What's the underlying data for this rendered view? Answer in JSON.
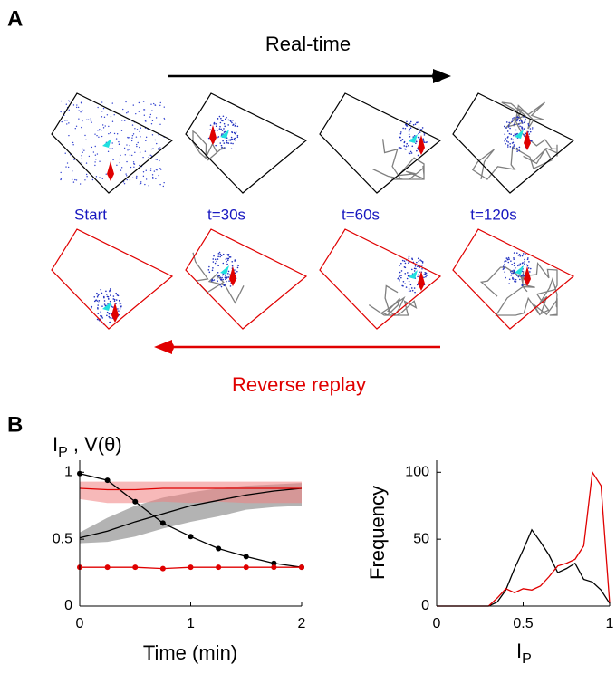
{
  "panel_a": {
    "label": "A",
    "top_arrow_label": "Real-time",
    "bottom_arrow_label": "Reverse replay",
    "snapshot_labels": [
      "Start",
      "t=30s",
      "t=60s",
      "t=120s"
    ]
  },
  "panel_b": {
    "label": "B"
  },
  "chart_data": [
    {
      "type": "line",
      "xlabel": "Time (min)",
      "ylabel": {
        "main": "I",
        "sub": "P",
        "rest": " , V(θ)"
      },
      "x": [
        0,
        0.25,
        0.5,
        0.75,
        1,
        1.25,
        1.5,
        1.75,
        2
      ],
      "xlim": [
        0,
        2
      ],
      "xticks": [
        0,
        1,
        2
      ],
      "ylim": [
        0,
        1.09
      ],
      "yticks": [
        0,
        0.5,
        1
      ],
      "bands": [
        {
          "color": "#808080",
          "alpha": 0.6,
          "lower": [
            0.47,
            0.48,
            0.52,
            0.58,
            0.63,
            0.67,
            0.72,
            0.74,
            0.75
          ],
          "upper": [
            0.55,
            0.66,
            0.75,
            0.81,
            0.85,
            0.88,
            0.9,
            0.91,
            0.92
          ]
        },
        {
          "color": "#f08080",
          "alpha": 0.55,
          "lower": [
            0.8,
            0.77,
            0.77,
            0.78,
            0.77,
            0.78,
            0.77,
            0.77,
            0.77
          ],
          "upper": [
            0.93,
            0.93,
            0.93,
            0.93,
            0.93,
            0.93,
            0.93,
            0.93,
            0.93
          ]
        }
      ],
      "series": [
        {
          "color": "#000000",
          "markers": true,
          "values": [
            0.99,
            0.94,
            0.78,
            0.62,
            0.52,
            0.43,
            0.37,
            0.32,
            0.29
          ]
        },
        {
          "color": "#e00000",
          "markers": true,
          "values": [
            0.29,
            0.29,
            0.29,
            0.28,
            0.29,
            0.29,
            0.29,
            0.29,
            0.29
          ]
        },
        {
          "color": "#000000",
          "markers": false,
          "values": [
            0.51,
            0.56,
            0.63,
            0.69,
            0.75,
            0.79,
            0.83,
            0.86,
            0.88
          ]
        },
        {
          "color": "#e00000",
          "markers": false,
          "values": [
            0.88,
            0.87,
            0.87,
            0.88,
            0.88,
            0.88,
            0.88,
            0.88,
            0.88
          ]
        }
      ]
    },
    {
      "type": "line",
      "xlabel": {
        "main": "I",
        "sub": "P"
      },
      "ylabel": "Frequency",
      "x": [
        0,
        0.05,
        0.1,
        0.15,
        0.2,
        0.25,
        0.3,
        0.35,
        0.4,
        0.45,
        0.5,
        0.55,
        0.6,
        0.65,
        0.7,
        0.75,
        0.8,
        0.85,
        0.9,
        0.95,
        1
      ],
      "xlim": [
        0,
        1
      ],
      "xticks": [
        0,
        0.5,
        1
      ],
      "ylim": [
        0,
        109
      ],
      "yticks": [
        0,
        50,
        100
      ],
      "series": [
        {
          "color": "#000000",
          "values": [
            0,
            0,
            0,
            0,
            0,
            0,
            0,
            3,
            12,
            28,
            42,
            57,
            48,
            38,
            25,
            28,
            32,
            20,
            18,
            12,
            2
          ]
        },
        {
          "color": "#e00000",
          "values": [
            0,
            0,
            0,
            0,
            0,
            0,
            0,
            6,
            13,
            10,
            13,
            12,
            15,
            22,
            30,
            32,
            35,
            45,
            100,
            90,
            2
          ]
        }
      ]
    }
  ]
}
